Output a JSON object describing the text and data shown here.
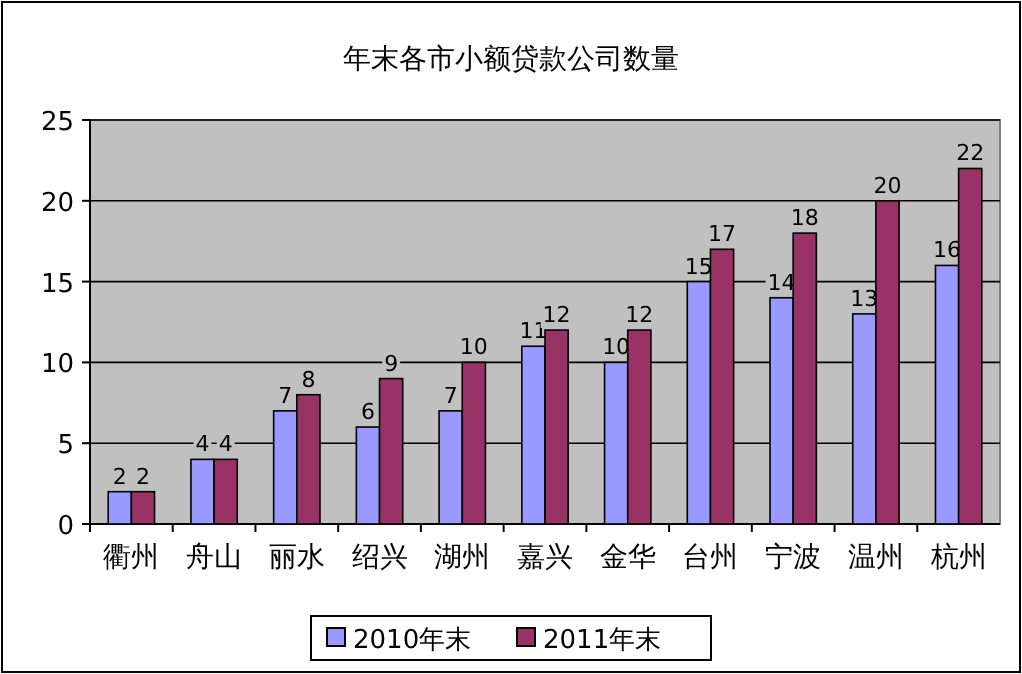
{
  "chart_data": {
    "type": "bar",
    "title": "年末各市小额贷款公司数量",
    "categories": [
      "衢州",
      "舟山",
      "丽水",
      "绍兴",
      "湖州",
      "嘉兴",
      "金华",
      "台州",
      "宁波",
      "温州",
      "杭州"
    ],
    "series": [
      {
        "name": "2010年末",
        "color": "#9999ff",
        "values": [
          2,
          4,
          7,
          6,
          7,
          11,
          10,
          15,
          14,
          13,
          16
        ]
      },
      {
        "name": "2011年末",
        "color": "#993366",
        "values": [
          2,
          4,
          8,
          9,
          10,
          12,
          12,
          17,
          18,
          20,
          22
        ]
      }
    ],
    "ylim": [
      0,
      25
    ],
    "yticks": [
      0,
      5,
      10,
      15,
      20,
      25
    ],
    "grid": "y",
    "legend": "bottom",
    "data_labels": true
  }
}
